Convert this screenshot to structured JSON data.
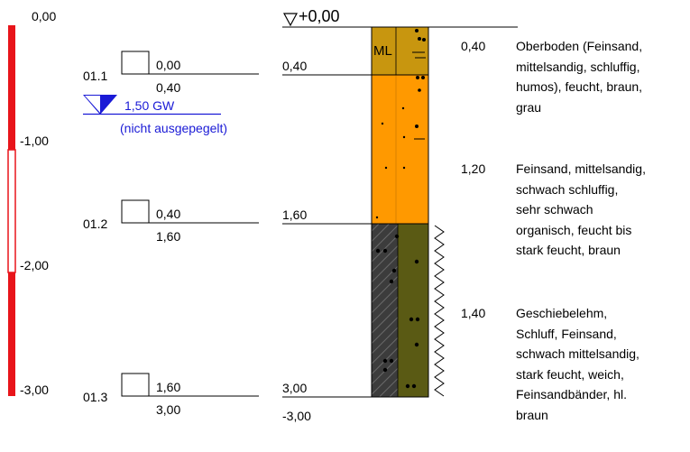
{
  "scale": {
    "labels": [
      "0,00",
      "-1,00",
      "-2,00",
      "-3,00"
    ],
    "colors": {
      "red": "#e8141a",
      "white": "#ffffff"
    }
  },
  "samples": [
    {
      "id": "01.1",
      "top": "0,00",
      "bottom": "0,40"
    },
    {
      "id": "01.2",
      "top": "0,40",
      "bottom": "1,60"
    },
    {
      "id": "01.3",
      "top": "1,60",
      "bottom": "3,00"
    }
  ],
  "groundwater": {
    "label": "1,50 GW",
    "note": "(nicht ausgepegelt)",
    "color": "#1a1ad6"
  },
  "profile": {
    "top_label": "+0,00",
    "boundaries": [
      "0,40",
      "1,60",
      "3,00"
    ],
    "end_label": "-3,00",
    "symbols": {
      "ml": "ML"
    },
    "colors": {
      "topsoil": "#c8960f",
      "sand": "#ff9900",
      "till_dark": "#3c3c3c",
      "till_olive": "#5a5a14"
    }
  },
  "layers": [
    {
      "thickness": "0,40",
      "lines": [
        "Oberboden (Feinsand,",
        "mittelsandig, schluffig,",
        "humos), feucht, braun,",
        "grau"
      ]
    },
    {
      "thickness": "1,20",
      "lines": [
        "Feinsand, mittelsandig,",
        "schwach schluffig,",
        "sehr schwach",
        "organisch, feucht bis",
        "stark feucht, braun"
      ]
    },
    {
      "thickness": "1,40",
      "lines": [
        "Geschiebelehm,",
        "Schluff, Feinsand,",
        "schwach mittelsandig,",
        "stark feucht, weich,",
        "Feinsandbänder, hl.",
        "braun"
      ]
    }
  ]
}
